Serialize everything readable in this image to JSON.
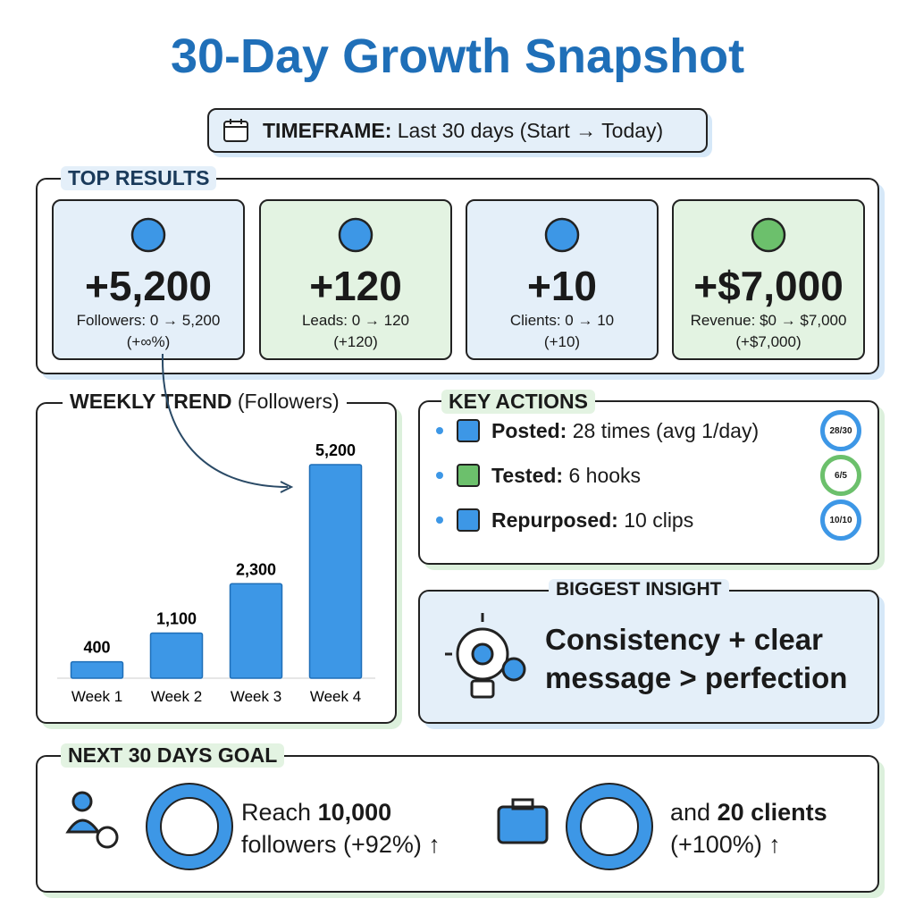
{
  "title": "30-Day Growth Snapshot",
  "timeframe": {
    "label": "TIMEFRAME:",
    "text": "Last 30 days (Start → Today)"
  },
  "top_results": {
    "heading": "TOP RESULTS",
    "cards": [
      {
        "value": "+5,200",
        "label": "Followers:",
        "detail": "0 → 5,200",
        "change": "(+∞%)"
      },
      {
        "value": "+120",
        "label": "Leads:",
        "detail": "0 → 120",
        "change": "(+120)"
      },
      {
        "value": "+10",
        "label": "Clients:",
        "detail": "0 → 10",
        "change": "(+10)"
      },
      {
        "value": "+$7,000",
        "label": "Revenue:",
        "detail": "$0 → $7,000",
        "change": "(+$7,000)"
      }
    ]
  },
  "chart_data": {
    "type": "bar",
    "title": "WEEKLY TREND",
    "subtitle": "(Followers)",
    "categories": [
      "Week 1",
      "Week 2",
      "Week 3",
      "Week 4"
    ],
    "values": [
      400,
      1100,
      2300,
      5200
    ],
    "value_labels": [
      "400",
      "1,100",
      "2,300",
      "5,200"
    ],
    "color": "#3d97e6",
    "ylim": [
      0,
      5700
    ]
  },
  "key_actions": {
    "heading": "KEY ACTIONS",
    "items": [
      {
        "label": "Posted:",
        "text": "28 times (avg 1/day)",
        "badge": "28/30"
      },
      {
        "label": "Tested:",
        "text": "6 hooks",
        "badge": "6/5"
      },
      {
        "label": "Repurposed:",
        "text": "10 clips",
        "badge": "10/10"
      }
    ]
  },
  "insight": {
    "heading": "BIGGEST INSIGHT",
    "text": "Consistency + clear message > perfection"
  },
  "goal": {
    "heading": "NEXT 30 DAYS GOAL",
    "items": [
      {
        "prefix": "Reach",
        "bold": "10,000",
        "rest": "followers (+92%) ↑"
      },
      {
        "prefix": "and",
        "bold": "20 clients",
        "rest": "(+100%) ↑"
      }
    ]
  }
}
